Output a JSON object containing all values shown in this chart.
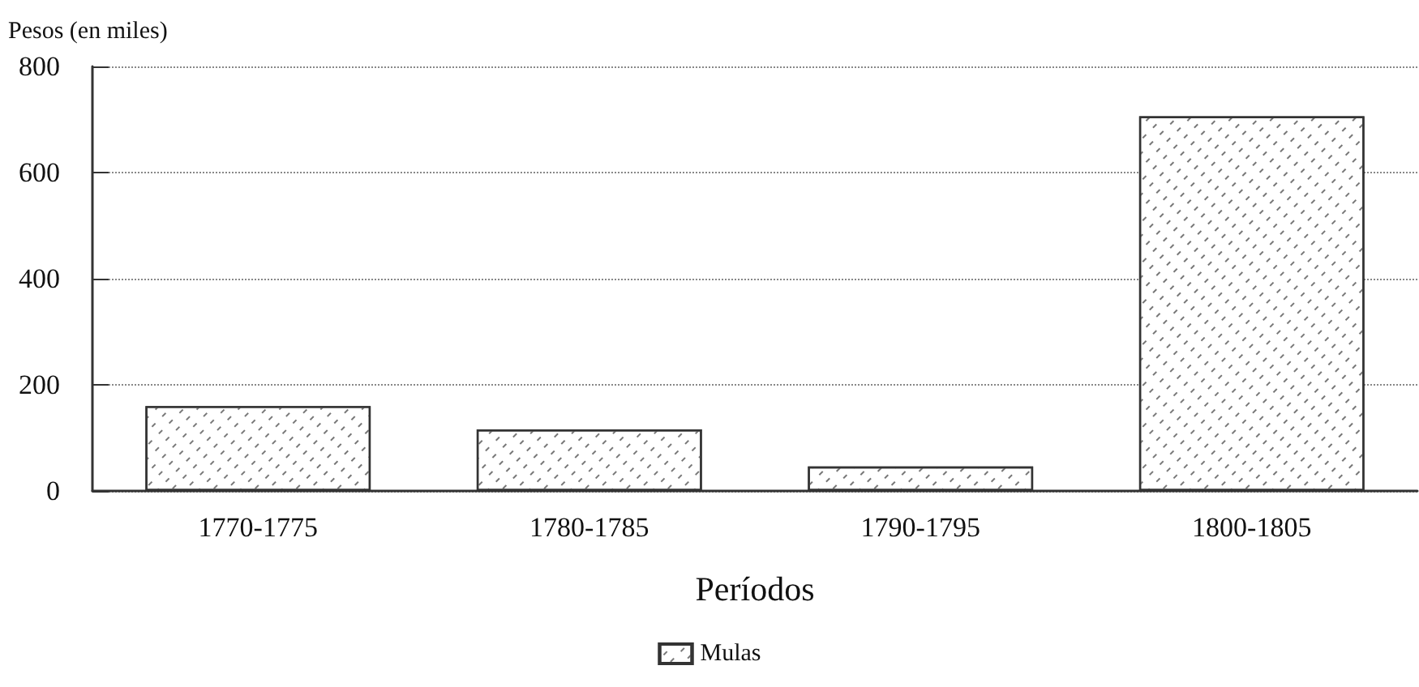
{
  "chart_data": {
    "type": "bar",
    "ylabel": "Pesos (en miles)",
    "xlabel": "Períodos",
    "categories": [
      "1770-1775",
      "1780-1785",
      "1790-1795",
      "1800-1805"
    ],
    "series": [
      {
        "name": "Mulas",
        "color": "#ffffff",
        "values": [
          160,
          116,
          46,
          706
        ]
      }
    ],
    "ylim": [
      0,
      800
    ],
    "yticks": [
      0,
      200,
      400,
      600,
      800
    ],
    "grid": "y",
    "legend": "bottom"
  }
}
